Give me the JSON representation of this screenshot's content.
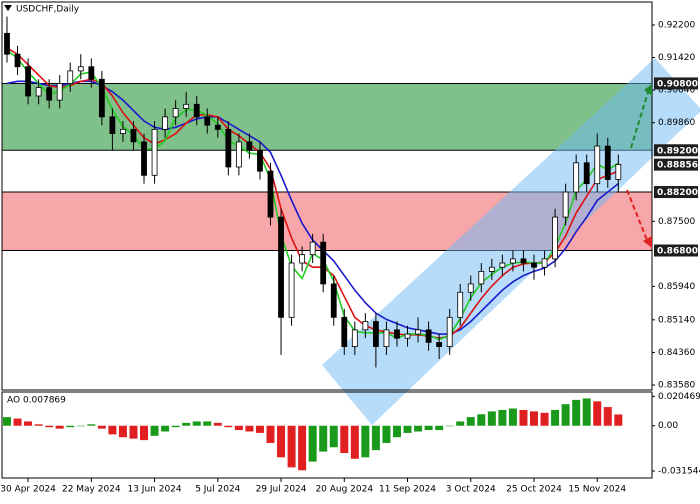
{
  "chart_data": {
    "type": "candlestick",
    "title": "USDCHF,Daily",
    "categories": [
      null,
      null,
      "30 Apr 2024",
      null,
      null,
      null,
      null,
      null,
      "22 May 2024",
      null,
      null,
      null,
      null,
      null,
      "13 Jun 2024",
      null,
      null,
      null,
      null,
      null,
      "5 Jul 2024",
      null,
      null,
      null,
      null,
      null,
      "29 Jul 2024",
      null,
      null,
      null,
      null,
      null,
      "20 Aug 2024",
      null,
      null,
      null,
      null,
      null,
      "11 Sep 2024",
      null,
      null,
      null,
      null,
      null,
      "3 Oct 2024",
      null,
      null,
      null,
      null,
      null,
      "25 Oct 2024",
      null,
      null,
      null,
      null,
      null,
      "15 Nov 2024",
      null,
      null
    ],
    "open": [
      0.92,
      0.915,
      0.912,
      0.905,
      0.907,
      0.904,
      0.908,
      0.911,
      0.912,
      0.909,
      0.9,
      0.896,
      0.897,
      0.894,
      0.886,
      0.897,
      0.9,
      0.902,
      0.903,
      0.9,
      0.898,
      0.897,
      0.888,
      0.894,
      0.892,
      0.887,
      0.876,
      0.852,
      0.865,
      0.867,
      0.87,
      0.86,
      0.852,
      0.845,
      0.849,
      0.851,
      0.845,
      0.849,
      0.847,
      0.848,
      0.849,
      0.846,
      0.845,
      0.852,
      0.858,
      0.86,
      0.863,
      0.864,
      0.865,
      0.866,
      0.865,
      0.864,
      0.866,
      0.876,
      0.882,
      0.889,
      0.884,
      0.893,
      0.885
    ],
    "high": [
      0.924,
      0.917,
      0.914,
      0.909,
      0.909,
      0.91,
      0.913,
      0.915,
      0.914,
      0.911,
      0.902,
      0.899,
      0.899,
      0.896,
      0.899,
      0.902,
      0.904,
      0.906,
      0.905,
      0.902,
      0.9,
      0.899,
      0.896,
      0.896,
      0.894,
      0.889,
      0.878,
      0.867,
      0.869,
      0.872,
      0.872,
      0.862,
      0.854,
      0.851,
      0.853,
      0.853,
      0.851,
      0.851,
      0.85,
      0.852,
      0.851,
      0.848,
      0.854,
      0.86,
      0.862,
      0.865,
      0.866,
      0.867,
      0.868,
      0.868,
      0.867,
      0.868,
      0.878,
      0.884,
      0.891,
      0.891,
      0.896,
      0.895,
      0.891
    ],
    "low": [
      0.913,
      0.91,
      0.903,
      0.903,
      0.902,
      0.902,
      0.906,
      0.909,
      0.907,
      0.898,
      0.892,
      0.894,
      0.892,
      0.884,
      0.884,
      0.895,
      0.898,
      0.9,
      0.898,
      0.896,
      0.895,
      0.886,
      0.886,
      0.89,
      0.885,
      0.874,
      0.843,
      0.85,
      0.863,
      0.865,
      0.858,
      0.85,
      0.843,
      0.843,
      0.847,
      0.84,
      0.843,
      0.845,
      0.845,
      0.846,
      0.844,
      0.842,
      0.843,
      0.85,
      0.856,
      0.858,
      0.861,
      0.862,
      0.863,
      0.863,
      0.861,
      0.862,
      0.864,
      0.874,
      0.88,
      0.882,
      0.882,
      0.883,
      0.882
    ],
    "close": [
      0.915,
      0.912,
      0.905,
      0.907,
      0.904,
      0.908,
      0.911,
      0.912,
      0.909,
      0.9,
      0.896,
      0.897,
      0.894,
      0.886,
      0.897,
      0.9,
      0.902,
      0.903,
      0.9,
      0.898,
      0.897,
      0.888,
      0.894,
      0.892,
      0.887,
      0.876,
      0.852,
      0.865,
      0.867,
      0.87,
      0.86,
      0.852,
      0.845,
      0.849,
      0.851,
      0.845,
      0.849,
      0.847,
      0.848,
      0.849,
      0.846,
      0.845,
      0.852,
      0.858,
      0.86,
      0.863,
      0.864,
      0.865,
      0.866,
      0.865,
      0.864,
      0.866,
      0.876,
      0.882,
      0.889,
      0.884,
      0.893,
      0.885,
      0.8886
    ],
    "candle_color": "#000000",
    "lines": [
      {
        "color": "#1a1acc",
        "values": [
          0.908,
          0.9085,
          0.9085,
          0.908,
          0.9075,
          0.9075,
          0.908,
          0.9085,
          0.9085,
          0.9075,
          0.906,
          0.904,
          0.9015,
          0.899,
          0.8975,
          0.897,
          0.8975,
          0.8985,
          0.8995,
          0.9,
          0.9,
          0.8985,
          0.897,
          0.8955,
          0.894,
          0.8915,
          0.886,
          0.88,
          0.8745,
          0.8705,
          0.868,
          0.8655,
          0.862,
          0.8585,
          0.8555,
          0.853,
          0.8515,
          0.8505,
          0.8495,
          0.849,
          0.8485,
          0.848,
          0.848,
          0.849,
          0.851,
          0.8535,
          0.856,
          0.8585,
          0.8605,
          0.862,
          0.863,
          0.8638,
          0.8655,
          0.8685,
          0.8725,
          0.876,
          0.88,
          0.882,
          0.884
        ]
      },
      {
        "color": "#dd1111",
        "values": [
          0.9165,
          0.915,
          0.9125,
          0.91,
          0.9075,
          0.907,
          0.9075,
          0.9085,
          0.909,
          0.908,
          0.905,
          0.901,
          0.898,
          0.895,
          0.8935,
          0.8945,
          0.896,
          0.8985,
          0.9005,
          0.9005,
          0.9,
          0.897,
          0.8955,
          0.8935,
          0.8915,
          0.8875,
          0.878,
          0.871,
          0.8655,
          0.864,
          0.864,
          0.862,
          0.857,
          0.852,
          0.85,
          0.849,
          0.8485,
          0.848,
          0.8478,
          0.8478,
          0.8475,
          0.847,
          0.8475,
          0.8495,
          0.853,
          0.8565,
          0.8595,
          0.862,
          0.864,
          0.8648,
          0.865,
          0.8652,
          0.8675,
          0.8715,
          0.877,
          0.881,
          0.885,
          0.886,
          0.887
        ]
      },
      {
        "color": "#22cc22",
        "values": [
          0.916,
          0.914,
          0.9107,
          0.908,
          0.9053,
          0.9063,
          0.9077,
          0.9103,
          0.9107,
          0.907,
          0.9017,
          0.8977,
          0.8957,
          0.8923,
          0.8923,
          0.8943,
          0.8997,
          0.9017,
          0.9017,
          0.9003,
          0.8983,
          0.8943,
          0.893,
          0.8913,
          0.891,
          0.885,
          0.8717,
          0.8643,
          0.8613,
          0.8673,
          0.8657,
          0.8607,
          0.8523,
          0.8487,
          0.8483,
          0.8483,
          0.8483,
          0.847,
          0.848,
          0.848,
          0.8477,
          0.8467,
          0.8477,
          0.8517,
          0.8567,
          0.8603,
          0.8623,
          0.864,
          0.865,
          0.8653,
          0.865,
          0.865,
          0.8687,
          0.8747,
          0.8823,
          0.885,
          0.8887,
          0.8873,
          0.8889
        ]
      }
    ],
    "ylim": [
      0.8346,
      0.9275
    ],
    "yticks": [
      {
        "value": 0.922,
        "label": "0.92200"
      },
      {
        "value": 0.9142,
        "label": "0.91420"
      },
      {
        "value": 0.9064,
        "label": "0.90640"
      },
      {
        "value": 0.8986,
        "label": "0.89860"
      },
      {
        "value": 0.875,
        "label": "0.87500"
      },
      {
        "value": 0.8594,
        "label": "0.85940"
      },
      {
        "value": 0.8514,
        "label": "0.85140"
      },
      {
        "value": 0.8436,
        "label": "0.84360"
      },
      {
        "value": 0.8358,
        "label": "0.83580"
      }
    ],
    "zones": [
      {
        "color": "#80c08a",
        "bounds": [
          {
            "value": 0.908,
            "label": "0.90800"
          },
          {
            "value": 0.892,
            "label": "0.89200"
          }
        ]
      },
      {
        "color": "#f7a6aa",
        "bounds": [
          {
            "value": 0.882,
            "label": "0.88200"
          },
          {
            "value": 0.868,
            "label": "0.86800"
          }
        ]
      }
    ],
    "last_price": {
      "value": 0.88856,
      "label": "0.88856"
    },
    "grid": false,
    "indicator": {
      "type": "bar",
      "title": "AO 0.007869",
      "values": [
        0.006,
        0.005,
        0.003,
        0.001,
        -0.001,
        -0.002,
        -0.001,
        0.0,
        0.001,
        -0.002,
        -0.006,
        -0.008,
        -0.009,
        -0.01,
        -0.007,
        -0.004,
        -0.001,
        0.002,
        0.003,
        0.003,
        0.002,
        -0.001,
        -0.003,
        -0.004,
        -0.005,
        -0.012,
        -0.022,
        -0.029,
        -0.031,
        -0.025,
        -0.018,
        -0.015,
        -0.019,
        -0.023,
        -0.022,
        -0.017,
        -0.012,
        -0.008,
        -0.005,
        -0.004,
        -0.003,
        -0.003,
        0.0,
        0.003,
        0.006,
        0.008,
        0.01,
        0.011,
        0.012,
        0.011,
        0.01,
        0.009,
        0.011,
        0.015,
        0.018,
        0.019,
        0.017,
        0.013,
        0.007869
      ],
      "up_color": "#1a9a1a",
      "down_color": "#e02020",
      "ylim": [
        -0.0364,
        0.0235
      ],
      "yticks": [
        0.020469,
        {
          "value": 0,
          "label": "0.00"
        },
        -0.031544
      ]
    }
  }
}
